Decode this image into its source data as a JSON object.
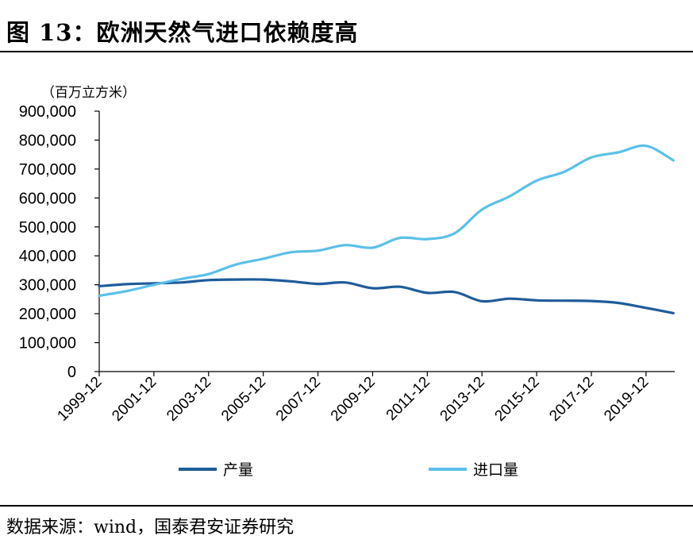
{
  "figure": {
    "title": "图 13：欧洲天然气进口依赖度高",
    "source": "数据来源：wind，国泰君安证券研究"
  },
  "chart_data": {
    "type": "line",
    "ylabel": "（百万立方米）",
    "ylim": [
      0,
      900000
    ],
    "yticks": [
      "900,000",
      "800,000",
      "700,000",
      "600,000",
      "500,000",
      "400,000",
      "300,000",
      "200,000",
      "100,000",
      "0"
    ],
    "ytick_values": [
      900000,
      800000,
      700000,
      600000,
      500000,
      400000,
      300000,
      200000,
      100000,
      0
    ],
    "x": [
      1999,
      2000,
      2001,
      2002,
      2003,
      2004,
      2005,
      2006,
      2007,
      2008,
      2009,
      2010,
      2011,
      2012,
      2013,
      2014,
      2015,
      2016,
      2017,
      2018,
      2019,
      2020
    ],
    "xticks": [
      "1999-12",
      "2001-12",
      "2003-12",
      "2005-12",
      "2007-12",
      "2009-12",
      "2011-12",
      "2013-12",
      "2015-12",
      "2017-12",
      "2019-12"
    ],
    "xtick_values": [
      1999,
      2001,
      2003,
      2005,
      2007,
      2009,
      2011,
      2013,
      2015,
      2017,
      2019
    ],
    "xlim": [
      1999,
      2020.05
    ],
    "grid": false,
    "legend_position": "bottom",
    "series": [
      {
        "name": "产量",
        "color": "#1f5c99",
        "values": [
          295000,
          302000,
          305000,
          308000,
          316000,
          318000,
          318000,
          312000,
          303000,
          308000,
          288000,
          293000,
          272000,
          275000,
          243000,
          252000,
          246000,
          245000,
          244000,
          237000,
          220000,
          202000
        ]
      },
      {
        "name": "进口量",
        "color": "#5bc0e8",
        "values": [
          262000,
          278000,
          300000,
          320000,
          337000,
          370000,
          390000,
          412000,
          418000,
          437000,
          428000,
          462000,
          458000,
          478000,
          560000,
          605000,
          660000,
          690000,
          740000,
          758000,
          780000,
          730000
        ]
      }
    ]
  }
}
